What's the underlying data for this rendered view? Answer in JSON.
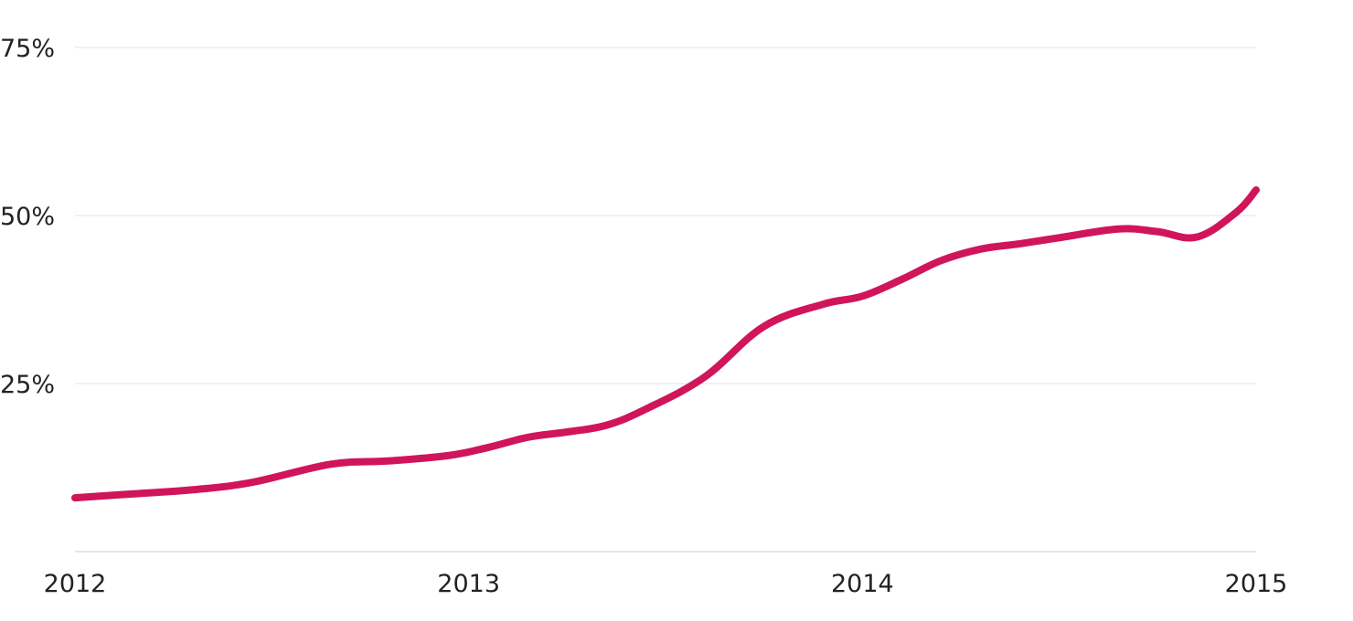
{
  "chart_data": {
    "type": "line",
    "title": "",
    "xlabel": "",
    "ylabel": "",
    "x_ticks": [
      "2012",
      "2013",
      "2014",
      "2015"
    ],
    "y_ticks": [
      "25%",
      "50%",
      "75%"
    ],
    "y_tick_values": [
      25,
      50,
      75
    ],
    "ylim": [
      0,
      75
    ],
    "xlim": [
      2012.0,
      2015.0
    ],
    "grid": true,
    "legend": "none",
    "line_color": "#d0155a",
    "series": [
      {
        "x": [
          2012.0,
          2012.15,
          2012.3,
          2012.45,
          2012.65,
          2012.8,
          2012.95,
          2013.05,
          2013.15,
          2013.25,
          2013.35,
          2013.45,
          2013.6,
          2013.75,
          2013.9,
          2014.0,
          2014.1,
          2014.2,
          2014.3,
          2014.4,
          2014.5,
          2014.65,
          2014.75,
          2014.85,
          2014.95,
          2015.0
        ],
        "y": [
          8,
          8.6,
          9.2,
          10.3,
          13,
          13.5,
          14.3,
          15.5,
          17,
          17.8,
          18.8,
          21.2,
          26,
          33.5,
          36.8,
          38,
          40.5,
          43.3,
          45,
          45.8,
          46.7,
          48,
          47.6,
          46.8,
          50.5,
          53.8
        ]
      }
    ]
  }
}
